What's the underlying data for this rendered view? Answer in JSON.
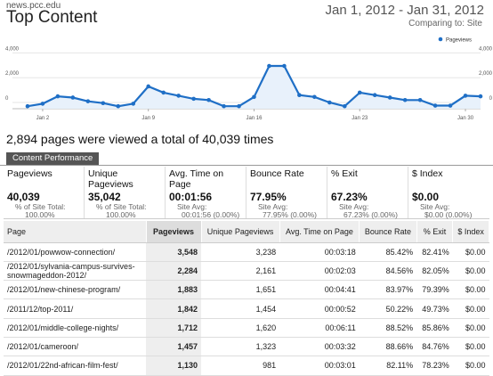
{
  "header": {
    "site": "news.pcc.edu",
    "title": "Top Content",
    "date_range": "Jan 1, 2012 - Jan 31, 2012",
    "comparing": "Comparing to: Site"
  },
  "chart_data": {
    "type": "line",
    "legend": "Pageviews",
    "legend_position": "top-right",
    "series_color": "#1f6fc6",
    "y_tick_labels": [
      "4,000",
      "2,000",
      "0"
    ],
    "y_ticks": [
      4000,
      2000,
      0
    ],
    "x_tick_labels": [
      "Jan 2",
      "Jan 9",
      "Jan 16",
      "Jan 23",
      "Jan 30"
    ],
    "x_tick_days": [
      2,
      9,
      16,
      23,
      30
    ],
    "ylim": [
      -500,
      4100
    ],
    "xlim": [
      0,
      31
    ],
    "grid": true,
    "x": [
      1,
      2,
      3,
      4,
      5,
      6,
      7,
      8,
      9,
      10,
      11,
      12,
      13,
      14,
      15,
      16,
      17,
      18,
      19,
      20,
      21,
      22,
      23,
      24,
      25,
      26,
      27,
      28,
      29,
      30,
      31
    ],
    "values": [
      -300,
      -100,
      500,
      400,
      100,
      -50,
      -300,
      -100,
      1300,
      800,
      550,
      300,
      200,
      -300,
      -300,
      450,
      2950,
      2950,
      600,
      450,
      0,
      -300,
      800,
      600,
      400,
      200,
      200,
      -250,
      -250,
      550,
      500
    ]
  },
  "summary": "2,894 pages were viewed a total of 40,039 times",
  "tab_label": "Content Performance",
  "metrics": [
    {
      "label": "Pageviews",
      "value": "40,039",
      "sub1": "% of Site Total:",
      "sub2": "100.00%"
    },
    {
      "label": "Unique Pageviews",
      "value": "35,042",
      "sub1": "% of Site Total:",
      "sub2": "100.00%"
    },
    {
      "label": "Avg. Time on Page",
      "value": "00:01:56",
      "sub1": "Site Avg:",
      "sub2": "00:01:56 (0.00%)"
    },
    {
      "label": "Bounce Rate",
      "value": "77.95%",
      "sub1": "Site Avg:",
      "sub2": "77.95% (0.00%)"
    },
    {
      "label": "% Exit",
      "value": "67.23%",
      "sub1": "Site Avg:",
      "sub2": "67.23% (0.00%)"
    },
    {
      "label": "$ Index",
      "value": "$0.00",
      "sub1": "Site Avg:",
      "sub2": "$0.00 (0.00%)"
    }
  ],
  "table": {
    "headers": [
      "Page",
      "Pageviews",
      "Unique Pageviews",
      "Avg. Time on Page",
      "Bounce Rate",
      "% Exit",
      "$ Index"
    ],
    "rows": [
      [
        "/2012/01/powwow-connection/",
        "3,548",
        "3,238",
        "00:03:18",
        "85.42%",
        "82.41%",
        "$0.00"
      ],
      [
        "/2012/01/sylvania-campus-survives-snowmageddon-2012/",
        "2,284",
        "2,161",
        "00:02:03",
        "84.56%",
        "82.05%",
        "$0.00"
      ],
      [
        "/2012/01/new-chinese-program/",
        "1,883",
        "1,651",
        "00:04:41",
        "83.97%",
        "79.39%",
        "$0.00"
      ],
      [
        "/2011/12/top-2011/",
        "1,842",
        "1,454",
        "00:00:52",
        "50.22%",
        "49.73%",
        "$0.00"
      ],
      [
        "/2012/01/middle-college-nights/",
        "1,712",
        "1,620",
        "00:06:11",
        "88.52%",
        "85.86%",
        "$0.00"
      ],
      [
        "/2012/01/cameroon/",
        "1,457",
        "1,323",
        "00:03:32",
        "88.66%",
        "84.76%",
        "$0.00"
      ],
      [
        "/2012/01/22nd-african-film-fest/",
        "1,130",
        "981",
        "00:03:01",
        "82.11%",
        "78.23%",
        "$0.00"
      ]
    ]
  }
}
